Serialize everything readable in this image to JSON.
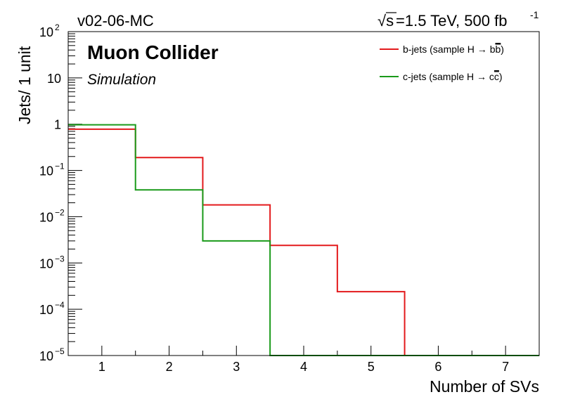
{
  "header": {
    "left_label": "v02-06-MC",
    "right_label_prefix": "=1.5 TeV, 500 fb",
    "right_label_sqrt": "√s",
    "right_label_exp": "-1"
  },
  "watermark": {
    "title": "Muon Collider",
    "subtitle": "Simulation"
  },
  "chart_data": {
    "type": "line",
    "style": "step-histogram",
    "xlabel": "Number of SVs",
    "ylabel": "Jets/ 1 unit",
    "xlim": [
      0.5,
      7.5
    ],
    "ylim": [
      1e-05,
      100
    ],
    "yscale": "log",
    "bin_edges": [
      0.5,
      1.5,
      2.5,
      3.5,
      4.5,
      5.5,
      6.5,
      7.5
    ],
    "x_ticks": [
      1,
      2,
      3,
      4,
      5,
      6,
      7
    ],
    "y_ticks": [
      {
        "value": 100,
        "base": "10",
        "exp": "2"
      },
      {
        "value": 10,
        "base": "10",
        "exp": ""
      },
      {
        "value": 1,
        "base": "1",
        "exp": ""
      },
      {
        "value": 0.1,
        "base": "10",
        "exp": "−1"
      },
      {
        "value": 0.01,
        "base": "10",
        "exp": "−2"
      },
      {
        "value": 0.001,
        "base": "10",
        "exp": "−3"
      },
      {
        "value": 0.0001,
        "base": "10",
        "exp": "−4"
      },
      {
        "value": 1e-05,
        "base": "10",
        "exp": "−5"
      }
    ],
    "legend_position": "top-right",
    "series": [
      {
        "name": "b-jets (sample H → bb)",
        "legend_text": "b-jets (sample H → b",
        "legend_bar": "b",
        "legend_close": ")",
        "color": "#e31a1c",
        "values": [
          0.78,
          0.19,
          0.018,
          0.0024,
          0.00024,
          0,
          0
        ]
      },
      {
        "name": "c-jets (sample H → cc)",
        "legend_text": "c-jets (sample H → c",
        "legend_bar": "c",
        "legend_close": ")",
        "color": "#1a9a1a",
        "values": [
          0.97,
          0.038,
          0.003,
          0,
          0,
          0,
          0
        ]
      }
    ]
  }
}
